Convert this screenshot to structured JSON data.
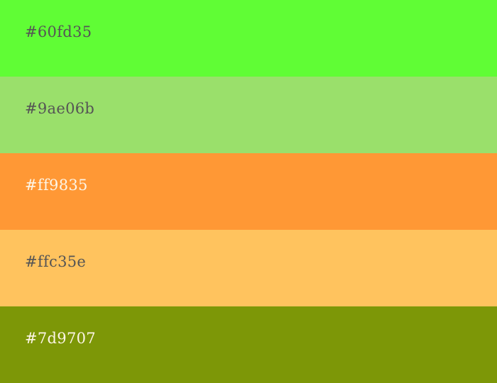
{
  "palette": {
    "swatches": [
      {
        "label": "#60fd35",
        "color": "#60fd35",
        "text_color": "#555555"
      },
      {
        "label": "#9ae06b",
        "color": "#9ae06b",
        "text_color": "#555555"
      },
      {
        "label": "#ff9835",
        "color": "#ff9835",
        "text_color": "#fdf5e6"
      },
      {
        "label": "#ffc35e",
        "color": "#ffc35e",
        "text_color": "#555555"
      },
      {
        "label": "#7d9707",
        "color": "#7d9707",
        "text_color": "#fdf5e6"
      }
    ]
  }
}
